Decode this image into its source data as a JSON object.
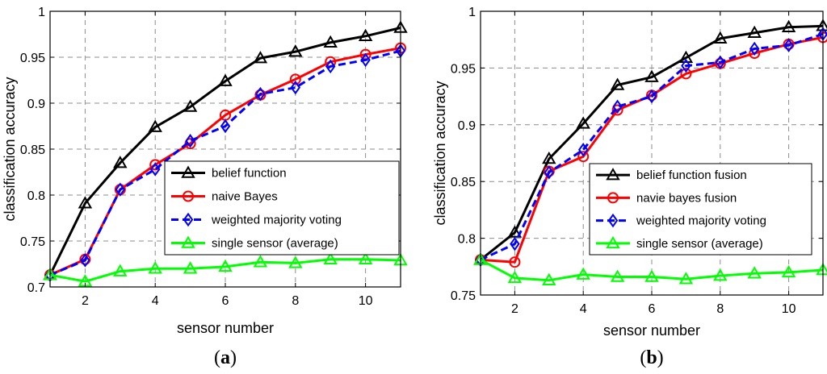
{
  "chart_data": [
    {
      "type": "line",
      "caption_open": "(",
      "caption_letter": "a",
      "caption_close": ")",
      "xlabel": "sensor number",
      "ylabel": "classification accuracy",
      "xlim": [
        1,
        11
      ],
      "ylim": [
        0.7,
        1.0
      ],
      "xticks": [
        2,
        4,
        6,
        8,
        10
      ],
      "yticks": [
        0.7,
        0.75,
        0.8,
        0.85,
        0.9,
        0.95,
        1
      ],
      "ytick_labels": [
        "0.7",
        "0.75",
        "0.8",
        "0.85",
        "0.9",
        "0.95",
        "1"
      ],
      "grid": true,
      "legend_position": "lower-right",
      "x": [
        1,
        2,
        3,
        4,
        5,
        6,
        7,
        8,
        9,
        10,
        11
      ],
      "series": [
        {
          "name": "belief function",
          "color": "#000000",
          "marker": "triangle",
          "dash": "solid",
          "values": [
            0.713,
            0.791,
            0.835,
            0.874,
            0.896,
            0.924,
            0.949,
            0.956,
            0.966,
            0.973,
            0.982
          ]
        },
        {
          "name": "naive Bayes",
          "color": "#ff0000",
          "marker": "circle",
          "dash": "solid",
          "values": [
            0.713,
            0.73,
            0.806,
            0.833,
            0.856,
            0.887,
            0.909,
            0.926,
            0.945,
            0.953,
            0.96
          ]
        },
        {
          "name": "weighted majority voting",
          "color": "#0000ff",
          "marker": "diamond",
          "dash": "dashed",
          "values": [
            0.713,
            0.729,
            0.806,
            0.828,
            0.859,
            0.875,
            0.91,
            0.917,
            0.94,
            0.947,
            0.957
          ]
        },
        {
          "name": "single sensor (average)",
          "color": "#00ff00",
          "marker": "triangle",
          "dash": "solid",
          "values": [
            0.713,
            0.706,
            0.717,
            0.72,
            0.72,
            0.722,
            0.727,
            0.726,
            0.73,
            0.73,
            0.729
          ]
        }
      ]
    },
    {
      "type": "line",
      "caption_open": "(",
      "caption_letter": "b",
      "caption_close": ")",
      "xlabel": "sensor number",
      "ylabel": "classification accuracy",
      "xlim": [
        1,
        11
      ],
      "ylim": [
        0.75,
        1.0
      ],
      "xticks": [
        2,
        4,
        6,
        8,
        10
      ],
      "yticks": [
        0.75,
        0.8,
        0.85,
        0.9,
        0.95,
        1
      ],
      "ytick_labels": [
        "0.75",
        "0.8",
        "0.85",
        "0.9",
        "0.95",
        "1"
      ],
      "grid": true,
      "legend_position": "lower-right",
      "x": [
        1,
        2,
        3,
        4,
        5,
        6,
        7,
        8,
        9,
        10,
        11
      ],
      "series": [
        {
          "name": "belief function fusion",
          "color": "#000000",
          "marker": "triangle",
          "dash": "solid",
          "values": [
            0.781,
            0.805,
            0.87,
            0.901,
            0.935,
            0.942,
            0.959,
            0.976,
            0.981,
            0.986,
            0.987
          ]
        },
        {
          "name": "navie bayes fusion",
          "color": "#ff0000",
          "marker": "circle",
          "dash": "solid",
          "values": [
            0.781,
            0.779,
            0.859,
            0.872,
            0.913,
            0.926,
            0.945,
            0.954,
            0.963,
            0.971,
            0.977
          ]
        },
        {
          "name": "weighted majority voting",
          "color": "#0000ff",
          "marker": "diamond",
          "dash": "dashed",
          "values": [
            0.781,
            0.795,
            0.858,
            0.878,
            0.916,
            0.925,
            0.952,
            0.955,
            0.967,
            0.97,
            0.98
          ]
        },
        {
          "name": "single sensor (average)",
          "color": "#00ff00",
          "marker": "triangle",
          "dash": "solid",
          "values": [
            0.781,
            0.765,
            0.763,
            0.768,
            0.766,
            0.766,
            0.764,
            0.767,
            0.769,
            0.77,
            0.772
          ]
        }
      ]
    }
  ]
}
